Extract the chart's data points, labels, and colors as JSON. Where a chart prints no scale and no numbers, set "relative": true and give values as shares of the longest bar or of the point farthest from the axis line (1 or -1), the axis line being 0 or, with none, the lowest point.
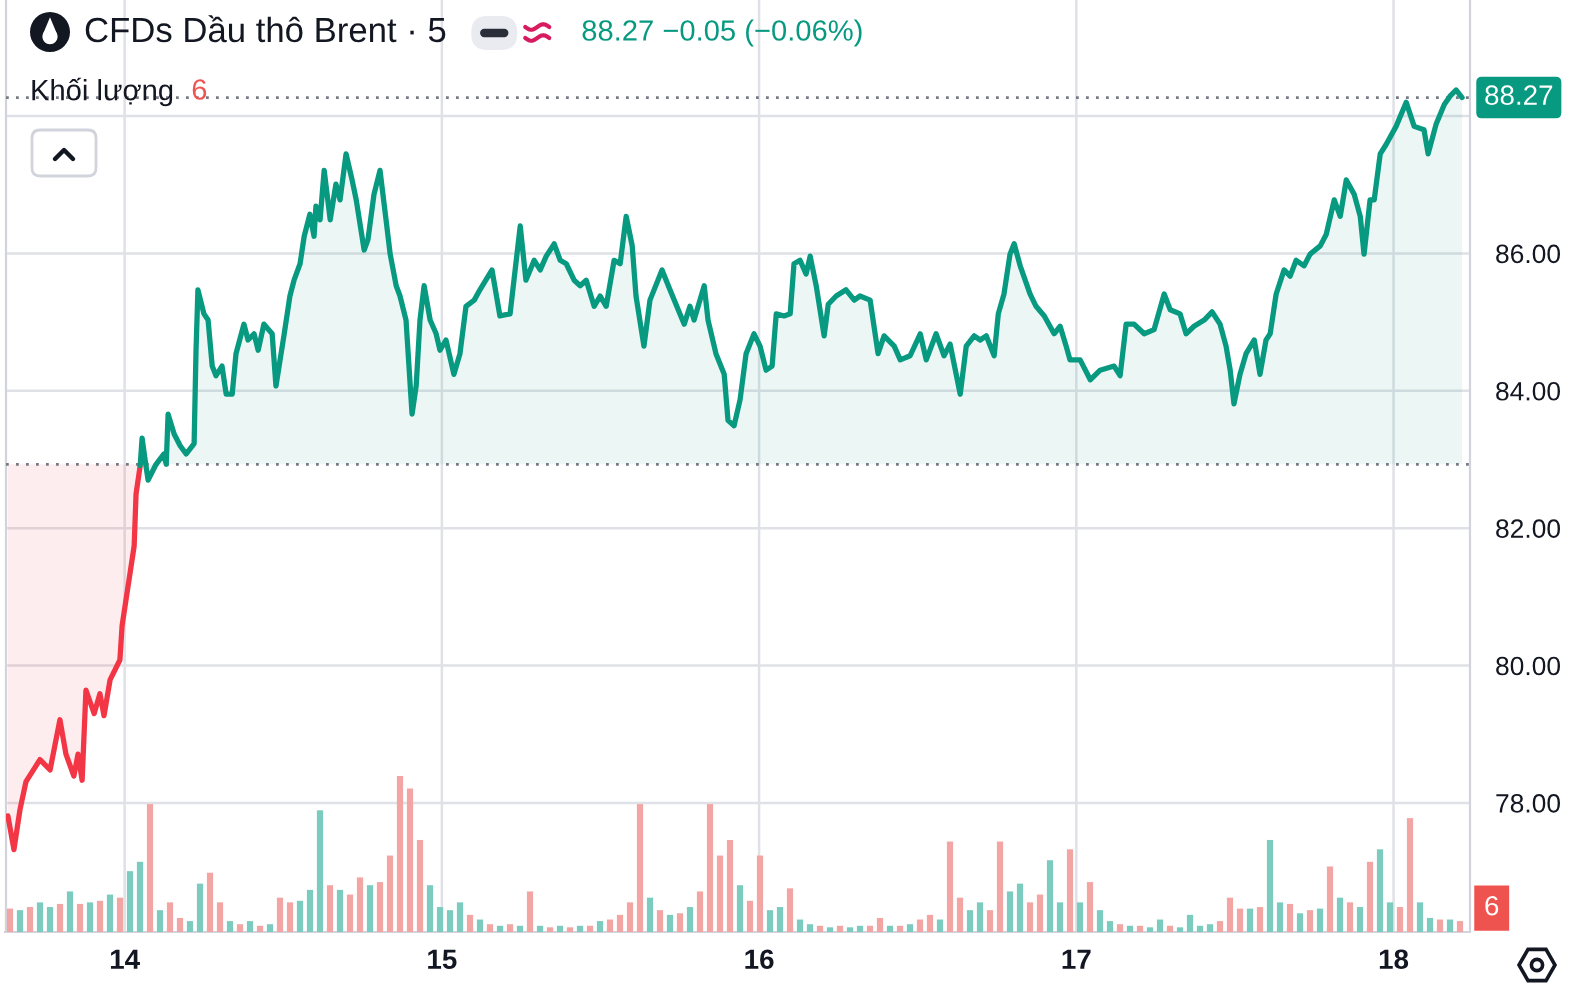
{
  "chart_data": [
    {
      "type": "area",
      "title": "CFDs Dầu thô Brent · 5",
      "annotations": [
        "88.27 −0.05 (−0.06%)"
      ],
      "series": [
        {
          "type": "line",
          "color": "#f23645",
          "x": [
            13.632,
            13.651,
            13.67,
            13.689,
            13.733,
            13.765,
            13.796,
            13.815,
            13.84,
            13.853,
            13.866,
            13.878,
            13.904,
            13.922,
            13.935,
            13.954,
            13.985,
            13.992,
            14.004,
            14.03,
            14.036,
            14.049
          ],
          "values": [
            77.81,
            77.32,
            77.9,
            78.31,
            78.63,
            78.48,
            79.21,
            78.71,
            78.39,
            78.71,
            78.33,
            79.64,
            79.3,
            79.59,
            79.27,
            79.79,
            80.08,
            80.58,
            80.95,
            81.74,
            82.5,
            82.91
          ],
          "lower": [
            77.81,
            77.32,
            77.9,
            78.31,
            78.63,
            78.48,
            79.21,
            78.71,
            78.39,
            78.71,
            78.33,
            79.64,
            79.3,
            79.59,
            79.27,
            79.79,
            80.08,
            80.58,
            80.95,
            81.74,
            82.5,
            82.91
          ],
          "upper": [
            82.93,
            82.93,
            82.93,
            82.93,
            82.93,
            82.93,
            82.93,
            82.93,
            82.93,
            82.93,
            82.93,
            82.93,
            82.93,
            82.93,
            82.93,
            82.93,
            82.93,
            82.93,
            82.93,
            82.93,
            82.93,
            82.93
          ]
        },
        {
          "color": "#089981",
          "x": [
            14.049,
            14.055,
            14.067,
            14.074,
            14.099,
            14.124,
            14.131,
            14.137,
            14.156,
            14.175,
            14.194,
            14.219,
            14.225,
            14.231,
            14.25,
            14.263,
            14.276,
            14.288,
            14.307,
            14.32,
            14.339,
            14.351,
            14.376,
            14.389,
            14.408,
            14.421,
            14.439,
            14.465,
            14.477,
            14.503,
            14.521,
            14.534,
            14.553,
            14.566,
            14.584,
            14.597,
            14.603,
            14.616,
            14.629,
            14.648,
            14.666,
            14.679,
            14.698,
            14.717,
            14.73,
            14.755,
            14.767,
            14.786,
            14.805,
            14.824,
            14.837,
            14.856,
            14.868,
            14.887,
            14.906,
            14.919,
            14.931,
            14.944,
            14.963,
            14.982,
            14.994,
            15.013,
            15.038,
            15.057,
            15.076,
            15.102,
            15.12,
            15.158,
            15.183,
            15.215,
            15.247,
            15.265,
            15.291,
            15.31,
            15.329,
            15.354,
            15.373,
            15.392,
            15.417,
            15.436,
            15.455,
            15.48,
            15.499,
            15.518,
            15.543,
            15.562,
            15.581,
            15.6,
            15.612,
            15.637,
            15.656,
            15.694,
            15.719,
            15.764,
            15.782,
            15.795,
            15.827,
            15.839,
            15.864,
            15.89,
            15.902,
            15.921,
            15.94,
            15.959,
            15.984,
            16.003,
            16.022,
            16.041,
            16.054,
            16.079,
            16.098,
            16.11,
            16.129,
            16.148,
            16.161,
            16.18,
            16.205,
            16.218,
            16.243,
            16.274,
            16.3,
            16.318,
            16.35,
            16.375,
            16.394,
            16.426,
            16.445,
            16.476,
            16.508,
            16.527,
            16.558,
            16.583,
            16.602,
            16.634,
            16.653,
            16.678,
            16.697,
            16.716,
            16.741,
            16.754,
            16.772,
            16.791,
            16.804,
            16.823,
            16.854,
            16.873,
            16.899,
            16.93,
            16.949,
            16.968,
            16.98,
            17.012,
            17.044,
            17.075,
            17.119,
            17.138,
            17.157,
            17.182,
            17.214,
            17.245,
            17.277,
            17.296,
            17.327,
            17.346,
            17.371,
            17.403,
            17.428,
            17.453,
            17.472,
            17.485,
            17.497,
            17.516,
            17.535,
            17.561,
            17.579,
            17.598,
            17.611,
            17.63,
            17.655,
            17.674,
            17.693,
            17.718,
            17.737,
            17.769,
            17.788,
            17.813,
            17.832,
            17.851,
            17.876,
            17.895,
            17.907,
            17.926,
            17.939,
            17.958,
            17.977,
            18.008,
            18.04,
            18.065,
            18.096,
            18.109,
            18.134,
            18.16,
            18.178,
            18.197,
            18.216
          ],
          "values": [
            82.91,
            83.31,
            82.91,
            82.7,
            82.93,
            83.08,
            82.93,
            83.66,
            83.37,
            83.2,
            83.08,
            83.23,
            84.59,
            85.47,
            85.12,
            85.03,
            84.36,
            84.22,
            84.36,
            83.95,
            83.95,
            84.54,
            84.97,
            84.74,
            84.83,
            84.59,
            84.97,
            84.83,
            84.07,
            84.83,
            85.38,
            85.61,
            85.85,
            86.25,
            86.57,
            86.25,
            86.69,
            86.49,
            87.21,
            86.49,
            87.01,
            86.78,
            87.45,
            87.07,
            86.78,
            86.05,
            86.2,
            86.86,
            87.21,
            86.49,
            85.99,
            85.53,
            85.38,
            85.03,
            83.66,
            84.07,
            85.03,
            85.53,
            85.03,
            84.83,
            84.59,
            84.74,
            84.24,
            84.54,
            85.23,
            85.32,
            85.47,
            85.76,
            85.09,
            85.12,
            86.4,
            85.61,
            85.9,
            85.76,
            85.96,
            86.14,
            85.9,
            85.85,
            85.61,
            85.53,
            85.61,
            85.23,
            85.38,
            85.23,
            85.9,
            85.85,
            86.54,
            86.11,
            85.38,
            84.65,
            85.32,
            85.76,
            85.47,
            84.97,
            85.23,
            85.03,
            85.53,
            85.03,
            84.54,
            84.24,
            83.57,
            83.49,
            83.87,
            84.54,
            84.83,
            84.65,
            84.3,
            84.36,
            85.12,
            85.09,
            85.12,
            85.85,
            85.9,
            85.7,
            85.96,
            85.53,
            84.8,
            85.26,
            85.38,
            85.47,
            85.32,
            85.38,
            85.32,
            84.54,
            84.8,
            84.65,
            84.45,
            84.51,
            84.83,
            84.45,
            84.83,
            84.51,
            84.68,
            83.95,
            84.65,
            84.8,
            84.74,
            84.8,
            84.51,
            85.12,
            85.41,
            85.99,
            86.14,
            85.82,
            85.41,
            85.23,
            85.09,
            84.83,
            84.94,
            84.65,
            84.45,
            84.45,
            84.16,
            84.3,
            84.36,
            84.22,
            84.97,
            84.97,
            84.83,
            84.89,
            85.41,
            85.18,
            85.12,
            84.83,
            84.94,
            85.03,
            85.15,
            84.97,
            84.65,
            84.3,
            83.81,
            84.24,
            84.54,
            84.74,
            84.24,
            84.74,
            84.83,
            85.41,
            85.76,
            85.67,
            85.9,
            85.82,
            85.99,
            86.11,
            86.28,
            86.78,
            86.54,
            87.07,
            86.86,
            86.54,
            85.99,
            86.78,
            86.78,
            87.45,
            87.59,
            87.85,
            88.2,
            87.85,
            87.8,
            87.45,
            87.88,
            88.17,
            88.29,
            88.38,
            88.27
          ]
        }
      ],
      "xlim": [
        13.626,
        18.241
      ],
      "xticks": [
        14,
        15,
        16,
        17,
        18
      ],
      "ylim": [
        76.12,
        89.69
      ],
      "yticks": [
        {
          "value": 78,
          "label": "78.00"
        },
        {
          "value": 80,
          "label": "80.00"
        },
        {
          "value": 82,
          "label": "82.00"
        },
        {
          "value": 84,
          "label": "84.00"
        },
        {
          "value": 86,
          "label": "86.00"
        },
        {
          "value": 88,
          "label": null
        }
      ],
      "grid": true,
      "ref_lines": [
        {
          "axis": "y",
          "value": 82.93,
          "line_style": "dotted",
          "color": "#787b86"
        },
        {
          "axis": "y",
          "value": 88.27,
          "label": "88.27",
          "line_style": "dotted",
          "color": "#787b86"
        }
      ]
    },
    {
      "type": "bar",
      "title": "Khối lượng",
      "annotations": [
        "6",
        "6"
      ],
      "relative": true,
      "categories": [
        null,
        null,
        null,
        null,
        null,
        null,
        null,
        null,
        null,
        null,
        null,
        null,
        null,
        null,
        null,
        null,
        null,
        null,
        null,
        null,
        null,
        null,
        null,
        null,
        null,
        null,
        null,
        null,
        null,
        null,
        null,
        null,
        null,
        null,
        null,
        null,
        null,
        null,
        null,
        null,
        null,
        null,
        null,
        null,
        null,
        null,
        null,
        null,
        null,
        null,
        null,
        null,
        null,
        null,
        null,
        null,
        null,
        null,
        null,
        null,
        null,
        null,
        null,
        null,
        null,
        null,
        null,
        null,
        null,
        null,
        null,
        null,
        null,
        null,
        null,
        null,
        null,
        null,
        null,
        null,
        null,
        null,
        null,
        null,
        null,
        null,
        null,
        null,
        null,
        null,
        null,
        null,
        null,
        null,
        null,
        null,
        null,
        null,
        null,
        null,
        null,
        null,
        null,
        null,
        null,
        null,
        null,
        null,
        null,
        null,
        null,
        null,
        null,
        null,
        null,
        null,
        null,
        null,
        null,
        null,
        null,
        null,
        null,
        null,
        null,
        null,
        null,
        null,
        null,
        null,
        null,
        null,
        null,
        null,
        null,
        null,
        null,
        null,
        null,
        null,
        null,
        null,
        null,
        null,
        null,
        null
      ],
      "values": [
        0.15,
        0.14,
        0.16,
        0.19,
        0.16,
        0.18,
        0.26,
        0.18,
        0.19,
        0.2,
        0.24,
        0.22,
        0.39,
        0.45,
        0.82,
        0.14,
        0.19,
        0.09,
        0.07,
        0.31,
        0.38,
        0.19,
        0.07,
        0.05,
        0.07,
        0.04,
        0.05,
        0.22,
        0.19,
        0.2,
        0.27,
        0.78,
        0.3,
        0.27,
        0.24,
        0.35,
        0.3,
        0.32,
        0.49,
        1,
        0.92,
        0.59,
        0.3,
        0.16,
        0.14,
        0.19,
        0.11,
        0.08,
        0.05,
        0.04,
        0.05,
        0.04,
        0.26,
        0.04,
        0.03,
        0.04,
        0.03,
        0.04,
        0.04,
        0.07,
        0.08,
        0.11,
        0.19,
        0.82,
        0.22,
        0.14,
        0.11,
        0.12,
        0.16,
        0.26,
        0.82,
        0.49,
        0.59,
        0.3,
        0.2,
        0.49,
        0.14,
        0.16,
        0.28,
        0.08,
        0.05,
        0.04,
        0.03,
        0.04,
        0.03,
        0.04,
        0.04,
        0.09,
        0.04,
        0.04,
        0.05,
        0.08,
        0.11,
        0.08,
        0.58,
        0.22,
        0.14,
        0.19,
        0.14,
        0.58,
        0.26,
        0.31,
        0.19,
        0.24,
        0.46,
        0.19,
        0.53,
        0.19,
        0.32,
        0.14,
        0.07,
        0.05,
        0.04,
        0.04,
        0.03,
        0.08,
        0.04,
        0.03,
        0.11,
        0.04,
        0.05,
        0.07,
        0.22,
        0.15,
        0.15,
        0.16,
        0.59,
        0.19,
        0.18,
        0.12,
        0.14,
        0.15,
        0.42,
        0.22,
        0.19,
        0.16,
        0.45,
        0.53,
        0.19,
        0.16,
        0.73,
        0.19,
        0.09,
        0.08,
        0.08,
        0.07
      ],
      "colors": [
        "#f2a5a3",
        "#7ccbbf",
        "#f2a5a3",
        "#7ccbbf",
        "#7ccbbf",
        "#f2a5a3",
        "#7ccbbf",
        "#f2a5a3",
        "#7ccbbf",
        "#f2a5a3",
        "#7ccbbf",
        "#f2a5a3",
        "#7ccbbf",
        "#7ccbbf",
        "#f2a5a3",
        "#7ccbbf",
        "#f2a5a3",
        "#f2a5a3",
        "#7ccbbf",
        "#7ccbbf",
        "#f2a5a3",
        "#f2a5a3",
        "#7ccbbf",
        "#f2a5a3",
        "#7ccbbf",
        "#f2a5a3",
        "#7ccbbf",
        "#f2a5a3",
        "#f2a5a3",
        "#7ccbbf",
        "#7ccbbf",
        "#7ccbbf",
        "#f2a5a3",
        "#7ccbbf",
        "#f2a5a3",
        "#f2a5a3",
        "#7ccbbf",
        "#f2a5a3",
        "#f2a5a3",
        "#f2a5a3",
        "#f2a5a3",
        "#f2a5a3",
        "#7ccbbf",
        "#7ccbbf",
        "#7ccbbf",
        "#7ccbbf",
        "#f2a5a3",
        "#7ccbbf",
        "#f2a5a3",
        "#7ccbbf",
        "#f2a5a3",
        "#7ccbbf",
        "#f2a5a3",
        "#7ccbbf",
        "#f2a5a3",
        "#7ccbbf",
        "#f2a5a3",
        "#7ccbbf",
        "#f2a5a3",
        "#7ccbbf",
        "#f2a5a3",
        "#f2a5a3",
        "#f2a5a3",
        "#f2a5a3",
        "#7ccbbf",
        "#f2a5a3",
        "#7ccbbf",
        "#f2a5a3",
        "#7ccbbf",
        "#f2a5a3",
        "#f2a5a3",
        "#f2a5a3",
        "#f2a5a3",
        "#7ccbbf",
        "#f2a5a3",
        "#f2a5a3",
        "#7ccbbf",
        "#7ccbbf",
        "#f2a5a3",
        "#7ccbbf",
        "#7ccbbf",
        "#f2a5a3",
        "#7ccbbf",
        "#f2a5a3",
        "#7ccbbf",
        "#7ccbbf",
        "#f2a5a3",
        "#f2a5a3",
        "#7ccbbf",
        "#f2a5a3",
        "#7ccbbf",
        "#f2a5a3",
        "#f2a5a3",
        "#7ccbbf",
        "#f2a5a3",
        "#f2a5a3",
        "#7ccbbf",
        "#7ccbbf",
        "#f2a5a3",
        "#f2a5a3",
        "#7ccbbf",
        "#7ccbbf",
        "#f2a5a3",
        "#f2a5a3",
        "#7ccbbf",
        "#7ccbbf",
        "#f2a5a3",
        "#7ccbbf",
        "#f2a5a3",
        "#7ccbbf",
        "#7ccbbf",
        "#f2a5a3",
        "#7ccbbf",
        "#f2a5a3",
        "#7ccbbf",
        "#7ccbbf",
        "#f2a5a3",
        "#7ccbbf",
        "#7ccbbf",
        "#7ccbbf",
        "#7ccbbf",
        "#f2a5a3",
        "#f2a5a3",
        "#f2a5a3",
        "#7ccbbf",
        "#f2a5a3",
        "#7ccbbf",
        "#7ccbbf",
        "#f2a5a3",
        "#7ccbbf",
        "#f2a5a3",
        "#7ccbbf",
        "#f2a5a3",
        "#7ccbbf",
        "#f2a5a3",
        "#7ccbbf",
        "#f2a5a3",
        "#7ccbbf",
        "#7ccbbf",
        "#f2a5a3",
        "#f2a5a3",
        "#7ccbbf",
        "#7ccbbf",
        "#f2a5a3",
        "#7ccbbf",
        "#f2a5a3"
      ]
    }
  ]
}
